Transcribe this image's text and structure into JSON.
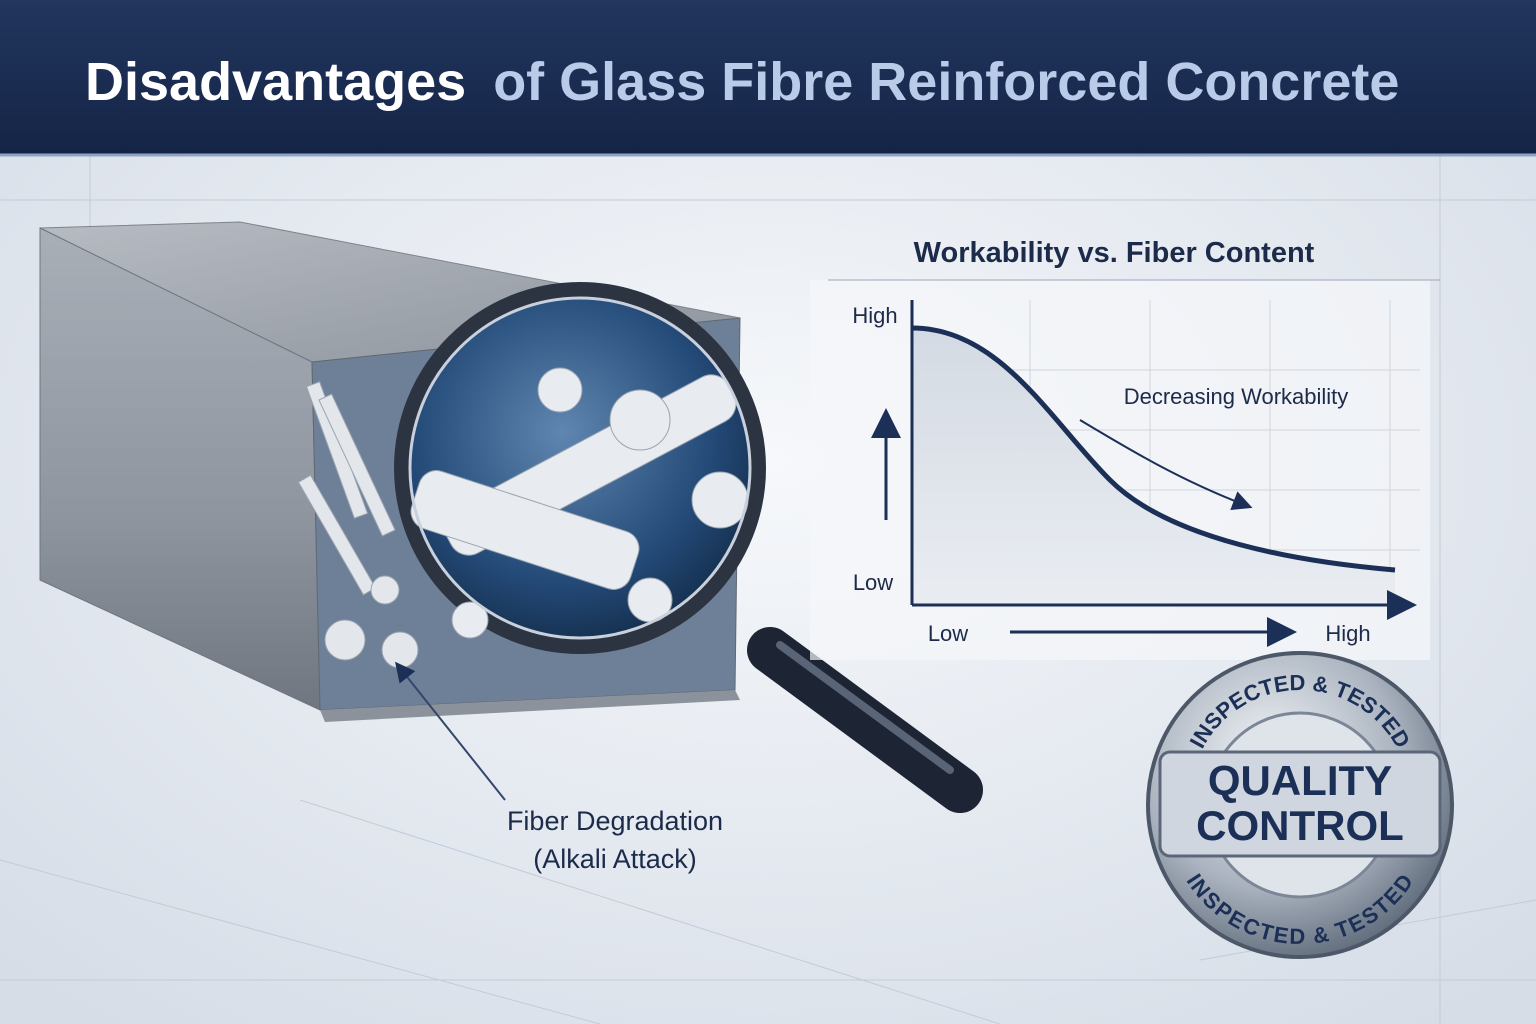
{
  "header": {
    "title": {
      "lead": "Disadvantages",
      "rest": "of Glass Fibre Reinforced Concrete"
    }
  },
  "graph": {
    "title": "Workability vs. Fiber Content",
    "y_axis": {
      "high": "High",
      "low": "Low"
    },
    "x_axis": {
      "low": "Low",
      "high": "High"
    },
    "annotation": "Decreasing Workability"
  },
  "callout": {
    "lines": [
      "Fiber Degradation",
      "(Alkali Attack)"
    ]
  },
  "seal": {
    "top_arc": "INSPECTED & TESTED",
    "bottom_arc": "INSPECTED & TESTED",
    "lines": [
      "QUALITY",
      "CONTROL"
    ]
  }
}
